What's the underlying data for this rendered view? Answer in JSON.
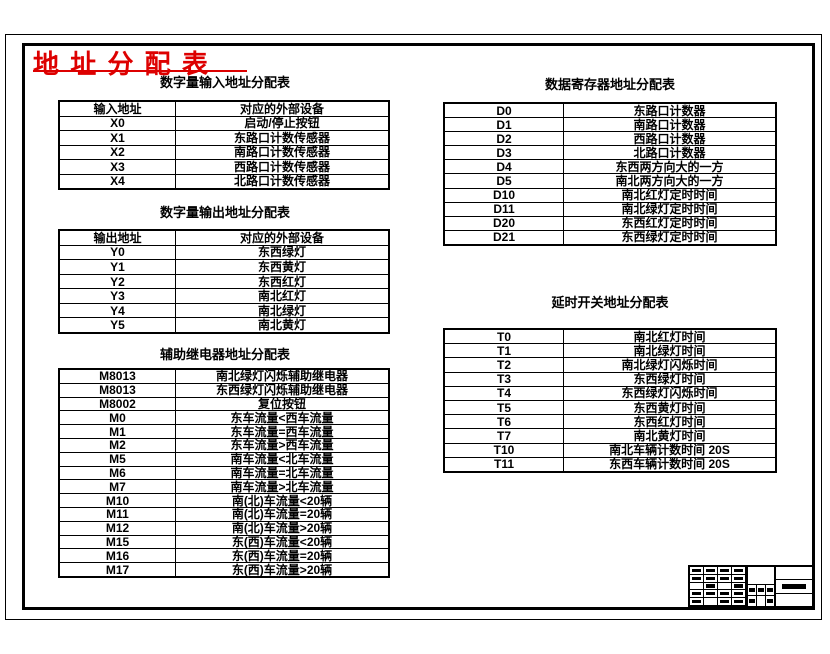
{
  "page_title": "地 址 分 配 表",
  "colors": {
    "accent_red": "#dd0000",
    "line_black": "#000000",
    "background": "#ffffff"
  },
  "sections": {
    "input": {
      "title": "数字量输入地址分配表"
    },
    "output": {
      "title": "数字量输出地址分配表"
    },
    "aux_relay": {
      "title": "辅助继电器地址分配表"
    },
    "data_register": {
      "title": "数据寄存器地址分配表"
    },
    "timer": {
      "title": "延时开关地址分配表"
    }
  },
  "tables": {
    "input": {
      "header": [
        "输入地址",
        "对应的外部设备"
      ],
      "rows": [
        [
          "X0",
          "启动/停止按钮"
        ],
        [
          "X1",
          "东路口计数传感器"
        ],
        [
          "X2",
          "南路口计数传感器"
        ],
        [
          "X3",
          "西路口计数传感器"
        ],
        [
          "X4",
          "北路口计数传感器"
        ]
      ]
    },
    "output": {
      "header": [
        "输出地址",
        "对应的外部设备"
      ],
      "rows": [
        [
          "Y0",
          "东西绿灯"
        ],
        [
          "Y1",
          "东西黄灯"
        ],
        [
          "Y2",
          "东西红灯"
        ],
        [
          "Y3",
          "南北红灯"
        ],
        [
          "Y4",
          "南北绿灯"
        ],
        [
          "Y5",
          "南北黄灯"
        ]
      ]
    },
    "aux_relay": {
      "rows": [
        [
          "M8013",
          "南北绿灯闪烁辅助继电器"
        ],
        [
          "M8013",
          "东西绿灯闪烁辅助继电器"
        ],
        [
          "M8002",
          "复位按钮"
        ],
        [
          "M0",
          "东车流量<西车流量"
        ],
        [
          "M1",
          "东车流量=西车流量"
        ],
        [
          "M2",
          "东车流量>西车流量"
        ],
        [
          "M5",
          "南车流量<北车流量"
        ],
        [
          "M6",
          "南车流量=北车流量"
        ],
        [
          "M7",
          "南车流量>北车流量"
        ],
        [
          "M10",
          "南(北)车流量<20辆"
        ],
        [
          "M11",
          "南(北)车流量=20辆"
        ],
        [
          "M12",
          "南(北)车流量>20辆"
        ],
        [
          "M15",
          "东(西)车流量<20辆"
        ],
        [
          "M16",
          "东(西)车流量=20辆"
        ],
        [
          "M17",
          "东(西)车流量>20辆"
        ]
      ]
    },
    "data_register": {
      "rows": [
        [
          "D0",
          "东路口计数器"
        ],
        [
          "D1",
          "南路口计数器"
        ],
        [
          "D2",
          "西路口计数器"
        ],
        [
          "D3",
          "北路口计数器"
        ],
        [
          "D4",
          "东西两方向大的一方"
        ],
        [
          "D5",
          "南北两方向大的一方"
        ],
        [
          "D10",
          "南北红灯定时时间"
        ],
        [
          "D11",
          "南北绿灯定时时间"
        ],
        [
          "D20",
          "东西红灯定时时间"
        ],
        [
          "D21",
          "东西绿灯定时时间"
        ]
      ]
    },
    "timer": {
      "rows": [
        [
          "T0",
          "南北红灯时间"
        ],
        [
          "T1",
          "南北绿灯时间"
        ],
        [
          "T2",
          "南北绿灯闪烁时间"
        ],
        [
          "T3",
          "东西绿灯时间"
        ],
        [
          "T4",
          "东西绿灯闪烁时间"
        ],
        [
          "T5",
          "东西黄灯时间"
        ],
        [
          "T6",
          "东西红灯时间"
        ],
        [
          "T7",
          "南北黄灯时间"
        ],
        [
          "T10",
          "南北车辆计数时间 20S"
        ],
        [
          "T11",
          "东西车辆计数时间 20S"
        ]
      ]
    }
  }
}
